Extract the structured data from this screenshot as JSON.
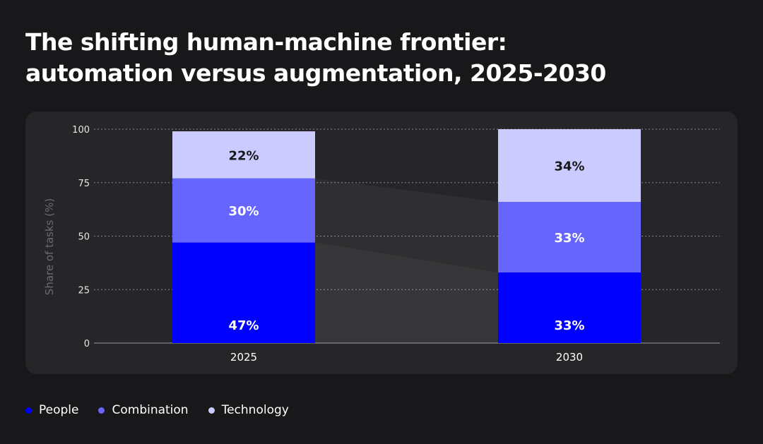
{
  "header": {
    "title_line1": "The shifting human-machine frontier:",
    "title_line2": "automation versus augmentation, 2025-2030"
  },
  "colors": {
    "people": "#0000fe",
    "combination": "#6666ff",
    "technology": "#cccbff",
    "panel": "#262628",
    "gridline": "#8a8a8e",
    "axis_label": "#6b6b70",
    "tick_label": "#e6e6e6",
    "connector": "#3a3a3d"
  },
  "legend": [
    {
      "name": "People",
      "key": "people"
    },
    {
      "name": "Combination",
      "key": "combination"
    },
    {
      "name": "Technology",
      "key": "technology"
    }
  ],
  "chart_data": {
    "type": "bar",
    "stacked": true,
    "categories": [
      "2025",
      "2030"
    ],
    "series": [
      {
        "name": "People",
        "values": [
          47,
          33
        ],
        "labels": [
          "47%",
          "33%"
        ]
      },
      {
        "name": "Combination",
        "values": [
          30,
          33
        ],
        "labels": [
          "30%",
          "33%"
        ]
      },
      {
        "name": "Technology",
        "values": [
          22,
          34
        ],
        "labels": [
          "22%",
          "34%"
        ]
      }
    ],
    "title": "",
    "xlabel": "",
    "ylabel": "Share of tasks (%)",
    "ylim": [
      0,
      100
    ],
    "yticks": [
      0,
      25,
      50,
      75,
      100
    ],
    "grid": true,
    "legend_position": "bottom-left"
  }
}
